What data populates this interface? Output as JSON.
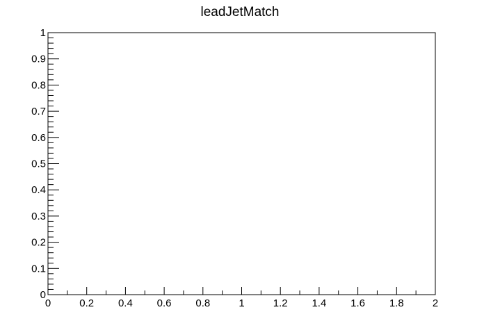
{
  "chart_data": {
    "type": "histogram",
    "title": "leadJetMatch",
    "xlabel": "",
    "ylabel": "",
    "xlim": [
      0,
      2
    ],
    "ylim": [
      0,
      1
    ],
    "x_major_ticks": [
      0,
      0.2,
      0.4,
      0.6,
      0.8,
      1,
      1.2,
      1.4,
      1.6,
      1.8,
      2
    ],
    "x_tick_labels": [
      "0",
      "0.2",
      "0.4",
      "0.6",
      "0.8",
      "1",
      "1.2",
      "1.4",
      "1.6",
      "1.8",
      "2"
    ],
    "x_minor_per_major": 2,
    "y_major_ticks": [
      0,
      0.1,
      0.2,
      0.3,
      0.4,
      0.5,
      0.6,
      0.7,
      0.8,
      0.9,
      1
    ],
    "y_tick_labels": [
      "0",
      "0.1",
      "0.2",
      "0.3",
      "0.4",
      "0.5",
      "0.6",
      "0.7",
      "0.8",
      "0.9",
      "1"
    ],
    "y_minor_per_major": 5,
    "series": [],
    "grid": false,
    "colors": {
      "frame": "#000000",
      "background": "#ffffff"
    }
  }
}
